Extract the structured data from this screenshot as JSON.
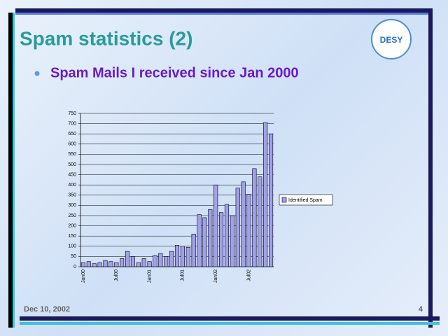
{
  "slide": {
    "title": "Spam statistics (2)",
    "bullet": "Spam Mails I received since Jan 2000"
  },
  "logo": {
    "text": "DESY"
  },
  "footer": {
    "date": "Dec 10, 2002",
    "page": "4"
  },
  "chart_data": {
    "type": "bar",
    "categories": [
      "Jan00",
      null,
      null,
      null,
      null,
      null,
      "Jul00",
      null,
      null,
      null,
      null,
      null,
      "Jan01",
      null,
      null,
      null,
      null,
      null,
      "Jul01",
      null,
      null,
      null,
      null,
      null,
      "Jan02",
      null,
      null,
      null,
      null,
      null,
      "Jul02",
      null,
      null,
      null,
      null
    ],
    "series": [
      {
        "name": "Identified Spam",
        "color": "#a0a0ee",
        "values": [
          20,
          25,
          15,
          20,
          30,
          25,
          20,
          40,
          75,
          50,
          20,
          40,
          25,
          55,
          65,
          50,
          75,
          105,
          100,
          95,
          160,
          255,
          240,
          280,
          400,
          265,
          305,
          250,
          385,
          415,
          355,
          480,
          440,
          705,
          650
        ]
      }
    ],
    "ylim": [
      0,
      750
    ],
    "yticks": [
      0,
      50,
      100,
      150,
      200,
      250,
      300,
      350,
      400,
      450,
      500,
      550,
      600,
      650,
      700,
      750
    ],
    "grid": true,
    "legend": "right"
  }
}
